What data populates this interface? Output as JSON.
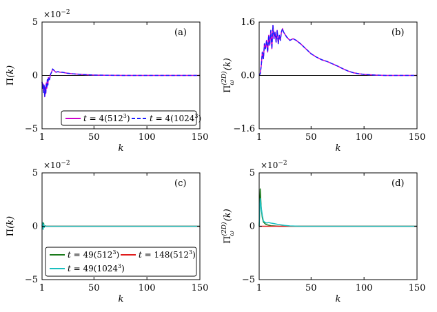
{
  "chart_data": [
    {
      "panel": "(a)",
      "type": "line",
      "ylabel": "Π(k)",
      "xlabel": "k",
      "xlim": [
        1,
        150
      ],
      "ylim": [
        -5,
        5
      ],
      "xticks": [
        "1",
        "50",
        "100",
        "150"
      ],
      "yticks": [
        "−5",
        "0",
        "5"
      ],
      "multiplier": "×10−2",
      "legend": [
        "t = 4(512³)",
        "t = 4(1024³)"
      ],
      "series": [
        {
          "name": "t = 4(512³)",
          "color": "#cc00cc",
          "dash": "",
          "x": [
            1,
            1.5,
            2,
            2.5,
            3,
            3.5,
            4,
            4.5,
            5,
            5.5,
            6,
            6.5,
            7,
            8,
            9,
            10,
            11,
            12,
            13,
            14,
            16,
            18,
            20,
            25,
            30,
            40,
            50,
            60,
            80,
            100,
            120,
            150
          ],
          "y": [
            -0.6,
            -1.2,
            -0.8,
            -1.6,
            -0.9,
            -2.0,
            -1.1,
            -1.7,
            -0.7,
            -1.2,
            -0.4,
            -0.9,
            -0.2,
            -0.4,
            0.1,
            0.3,
            0.6,
            0.5,
            0.4,
            0.3,
            0.35,
            0.3,
            0.3,
            0.2,
            0.15,
            0.08,
            0.03,
            0.02,
            0.0,
            0.0,
            0.0,
            0.0
          ]
        },
        {
          "name": "t = 4(1024³)",
          "color": "#1a1aff",
          "dash": "5,3",
          "x": [
            1,
            1.5,
            2,
            2.5,
            3,
            3.5,
            4,
            4.5,
            5,
            5.5,
            6,
            6.5,
            7,
            8,
            9,
            10,
            11,
            12,
            13,
            14,
            16,
            18,
            20,
            25,
            30,
            40,
            50,
            60,
            80,
            100,
            120,
            150
          ],
          "y": [
            -0.6,
            -1.2,
            -0.8,
            -1.6,
            -0.9,
            -2.0,
            -1.1,
            -1.7,
            -0.7,
            -1.2,
            -0.4,
            -0.9,
            -0.2,
            -0.4,
            0.1,
            0.3,
            0.6,
            0.5,
            0.4,
            0.3,
            0.35,
            0.3,
            0.3,
            0.2,
            0.15,
            0.08,
            0.03,
            0.02,
            0.0,
            0.0,
            0.0,
            0.0
          ]
        }
      ]
    },
    {
      "panel": "(b)",
      "type": "line",
      "ylabel": "Π_ω^(2D)(k)",
      "xlabel": "k",
      "xlim": [
        1,
        150
      ],
      "ylim": [
        -1.6,
        1.6
      ],
      "xticks": [
        "1",
        "50",
        "100",
        "150"
      ],
      "yticks": [
        "−1.6",
        "0.0",
        "1.6"
      ],
      "series": [
        {
          "name": "t = 4(512³)",
          "color": "#cc00cc",
          "dash": "",
          "x": [
            1,
            2,
            3,
            4,
            5,
            6,
            7,
            8,
            9,
            10,
            11,
            12,
            13,
            14,
            15,
            16,
            17,
            18,
            19,
            20,
            21,
            22,
            23,
            24,
            25,
            27,
            30,
            33,
            36,
            40,
            45,
            50,
            55,
            60,
            65,
            70,
            75,
            80,
            85,
            90,
            95,
            100,
            105,
            110,
            120,
            130,
            140,
            150
          ],
          "y": [
            0.0,
            0.05,
            0.3,
            0.7,
            0.5,
            0.95,
            0.8,
            1.05,
            0.7,
            1.2,
            0.9,
            1.35,
            0.8,
            1.5,
            1.1,
            1.3,
            1.0,
            1.35,
            0.95,
            1.2,
            1.05,
            1.3,
            1.4,
            1.3,
            1.25,
            1.15,
            1.05,
            1.1,
            1.05,
            0.95,
            0.8,
            0.65,
            0.55,
            0.47,
            0.42,
            0.35,
            0.28,
            0.2,
            0.13,
            0.08,
            0.05,
            0.03,
            0.02,
            0.01,
            0.0,
            0.0,
            0.0,
            0.0
          ]
        },
        {
          "name": "t = 4(1024³)",
          "color": "#1a1aff",
          "dash": "5,3",
          "x": [
            1,
            2,
            3,
            4,
            5,
            6,
            7,
            8,
            9,
            10,
            11,
            12,
            13,
            14,
            15,
            16,
            17,
            18,
            19,
            20,
            21,
            22,
            23,
            24,
            25,
            27,
            30,
            33,
            36,
            40,
            45,
            50,
            55,
            60,
            65,
            70,
            75,
            80,
            85,
            90,
            95,
            100,
            105,
            110,
            120,
            130,
            140,
            150
          ],
          "y": [
            0.0,
            0.05,
            0.3,
            0.7,
            0.5,
            0.95,
            0.8,
            1.05,
            0.7,
            1.2,
            0.9,
            1.35,
            0.8,
            1.5,
            1.1,
            1.3,
            1.0,
            1.35,
            0.95,
            1.2,
            1.05,
            1.3,
            1.4,
            1.3,
            1.25,
            1.15,
            1.05,
            1.1,
            1.05,
            0.95,
            0.8,
            0.65,
            0.55,
            0.47,
            0.42,
            0.35,
            0.28,
            0.2,
            0.13,
            0.08,
            0.05,
            0.03,
            0.02,
            0.01,
            0.0,
            0.0,
            0.0,
            0.0
          ]
        }
      ]
    },
    {
      "panel": "(c)",
      "type": "line",
      "ylabel": "Π(k)",
      "xlabel": "k",
      "xlim": [
        1,
        150
      ],
      "ylim": [
        -5,
        5
      ],
      "xticks": [
        "1",
        "50",
        "100",
        "150"
      ],
      "yticks": [
        "−5",
        "0",
        "5"
      ],
      "multiplier": "×10−2",
      "legend": [
        "t = 49(512³)",
        "t = 148(512³)",
        "t = 49(1024³)"
      ],
      "series": [
        {
          "name": "t = 49(512³)",
          "color": "#1a7a1a",
          "dash": "",
          "x": [
            1,
            1.5,
            2,
            2.5,
            3,
            4,
            5,
            10,
            50,
            150
          ],
          "y": [
            0.0,
            0.25,
            -0.2,
            0.3,
            -0.1,
            0.05,
            0.0,
            0.0,
            0.0,
            0.0
          ]
        },
        {
          "name": "t = 148(512³)",
          "color": "#e01b1b",
          "dash": "",
          "x": [
            1,
            150
          ],
          "y": [
            0.0,
            0.0
          ]
        },
        {
          "name": "t = 49(1024³)",
          "color": "#1abfbf",
          "dash": "",
          "x": [
            1,
            1.5,
            2,
            2.5,
            3,
            4,
            5,
            10,
            50,
            150
          ],
          "y": [
            0.0,
            0.35,
            -0.3,
            0.2,
            -0.1,
            0.05,
            0.0,
            0.0,
            0.0,
            0.0
          ]
        }
      ]
    },
    {
      "panel": "(d)",
      "type": "line",
      "ylabel": "Π_ω^(2D)(k)",
      "xlabel": "k",
      "xlim": [
        1,
        150
      ],
      "ylim": [
        -5,
        5
      ],
      "xticks": [
        "1",
        "50",
        "100",
        "150"
      ],
      "yticks": [
        "−5",
        "0",
        "5"
      ],
      "multiplier": "×10−2",
      "series": [
        {
          "name": "t = 49(512³)",
          "color": "#1a7a1a",
          "dash": "",
          "x": [
            1,
            2,
            3,
            4,
            5,
            6,
            7,
            8,
            10,
            12,
            15,
            20,
            30,
            50,
            150
          ],
          "y": [
            0.0,
            3.5,
            1.6,
            0.8,
            0.4,
            0.3,
            0.2,
            0.15,
            0.1,
            0.05,
            0.03,
            0.0,
            0.0,
            0.0,
            0.0
          ]
        },
        {
          "name": "t = 148(512³)",
          "color": "#e01b1b",
          "dash": "",
          "x": [
            1,
            150
          ],
          "y": [
            0.0,
            0.0
          ]
        },
        {
          "name": "t = 49(1024³)",
          "color": "#1abfbf",
          "dash": "",
          "x": [
            1,
            2,
            3,
            4,
            5,
            6,
            8,
            10,
            12,
            15,
            20,
            25,
            30,
            40,
            50,
            150
          ],
          "y": [
            0.0,
            2.6,
            1.7,
            1.0,
            0.5,
            0.4,
            0.3,
            0.35,
            0.3,
            0.25,
            0.15,
            0.08,
            0.03,
            0.0,
            0.0,
            0.0
          ]
        }
      ]
    }
  ]
}
